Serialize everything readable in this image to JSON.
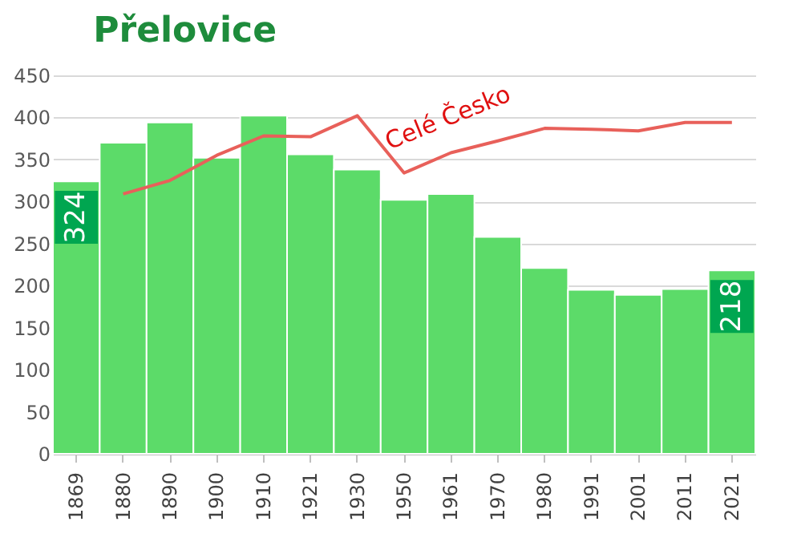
{
  "chart_data": {
    "type": "bar",
    "title": "Přelovice",
    "categories": [
      "1869",
      "1880",
      "1890",
      "1900",
      "1910",
      "1921",
      "1930",
      "1950",
      "1961",
      "1970",
      "1980",
      "1991",
      "2001",
      "2011",
      "2021"
    ],
    "series": [
      {
        "color": "#5cdb69",
        "values": [
          324,
          370,
          394,
          352,
          402,
          356,
          338,
          302,
          309,
          258,
          221,
          195,
          189,
          196,
          218
        ],
        "value_labels": [
          "324",
          null,
          null,
          null,
          null,
          null,
          null,
          null,
          null,
          null,
          null,
          null,
          null,
          null,
          "218"
        ]
      },
      {
        "type": "line",
        "name": "Celé Česko",
        "color": "#e8605a",
        "values": [
          null,
          309,
          325,
          355,
          378,
          377,
          402,
          334,
          358,
          372,
          387,
          386,
          384,
          394,
          394
        ]
      }
    ],
    "ylim": [
      0,
      450
    ],
    "yticks": [
      0,
      50,
      100,
      150,
      200,
      250,
      300,
      350,
      400,
      450
    ],
    "grid": "y"
  }
}
